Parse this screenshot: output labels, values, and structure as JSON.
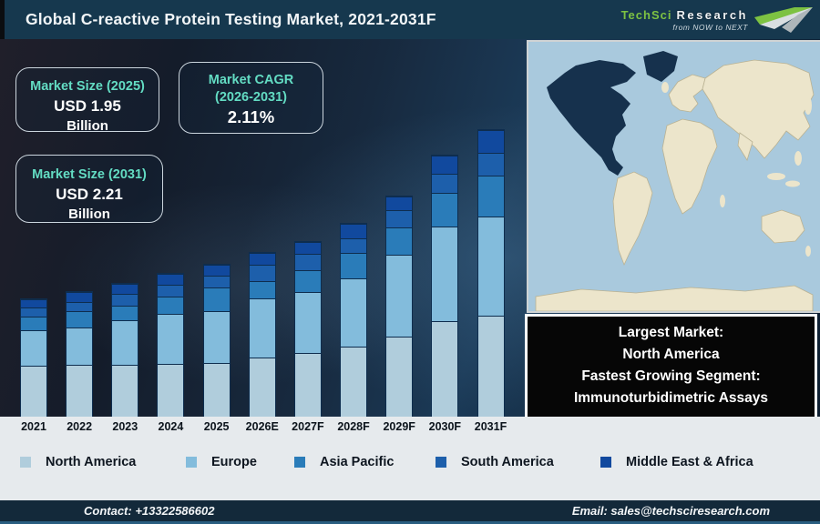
{
  "header": {
    "title": "Global C-reactive Protein Testing Market, 2021-2031F",
    "logo": {
      "brand": "TechSci",
      "brand2": "Research",
      "tagline": "from NOW to NEXT",
      "brand_color": "#7dc242"
    }
  },
  "info_boxes": {
    "size_2025": {
      "title": "Market Size (2025)",
      "value": "USD 1.95",
      "unit": "Billion"
    },
    "cagr": {
      "title_line1": "Market CAGR",
      "title_line2": "(2026-2031)",
      "value": "2.11%"
    },
    "size_2031": {
      "title": "Market Size (2031)",
      "value": "USD 2.21",
      "unit": "Billion"
    }
  },
  "highlight_box": {
    "line1": "Largest Market:",
    "line2": "North America",
    "line3": "Fastest Growing Segment:",
    "line4": "Immunoturbidimetric Assays"
  },
  "chart_data": {
    "type": "bar",
    "stacked": true,
    "title": "Global C-reactive Protein Testing Market, 2021-2031F",
    "categories": [
      "2021",
      "2022",
      "2023",
      "2024",
      "2025",
      "2026E",
      "2027F",
      "2028F",
      "2029F",
      "2030F",
      "2031F"
    ],
    "series": [
      {
        "name": "North America",
        "color": "#b0cddc",
        "values": [
          56,
          57,
          57,
          58,
          59,
          65,
          70,
          77,
          88,
          105,
          111
        ]
      },
      {
        "name": "Europe",
        "color": "#83bcdc",
        "values": [
          39,
          41,
          49,
          55,
          57,
          65,
          67,
          75,
          90,
          104,
          109
        ]
      },
      {
        "name": "Asia Pacific",
        "color": "#2a7cb9",
        "values": [
          15,
          18,
          16,
          19,
          26,
          19,
          24,
          28,
          30,
          37,
          45
        ]
      },
      {
        "name": "South America",
        "color": "#1d5fab",
        "values": [
          10,
          10,
          13,
          13,
          13,
          18,
          18,
          16,
          19,
          21,
          25
        ]
      },
      {
        "name": "Middle East & Africa",
        "color": "#11499e",
        "values": [
          9,
          11,
          11,
          12,
          12,
          13,
          13,
          16,
          15,
          20,
          25
        ]
      }
    ],
    "units": "relative bar-segment heights in px (chart shows no numeric value axis)",
    "annotations": {
      "market_size_2025": "USD 1.95 Billion",
      "market_size_2031": "USD 2.21 Billion",
      "cagr_2026_2031": "2.11%"
    },
    "grid": false,
    "legend_position": "bottom"
  },
  "map": {
    "highlighted_region": "North America",
    "colors": {
      "ocean": "#a9c9dd",
      "land": "#ece5cb",
      "land_stroke": "#b9b293",
      "highlight": "#16314d"
    }
  },
  "footer": {
    "contact": "Contact: +13322586602",
    "email": "Email: sales@techsciresearch.com"
  }
}
